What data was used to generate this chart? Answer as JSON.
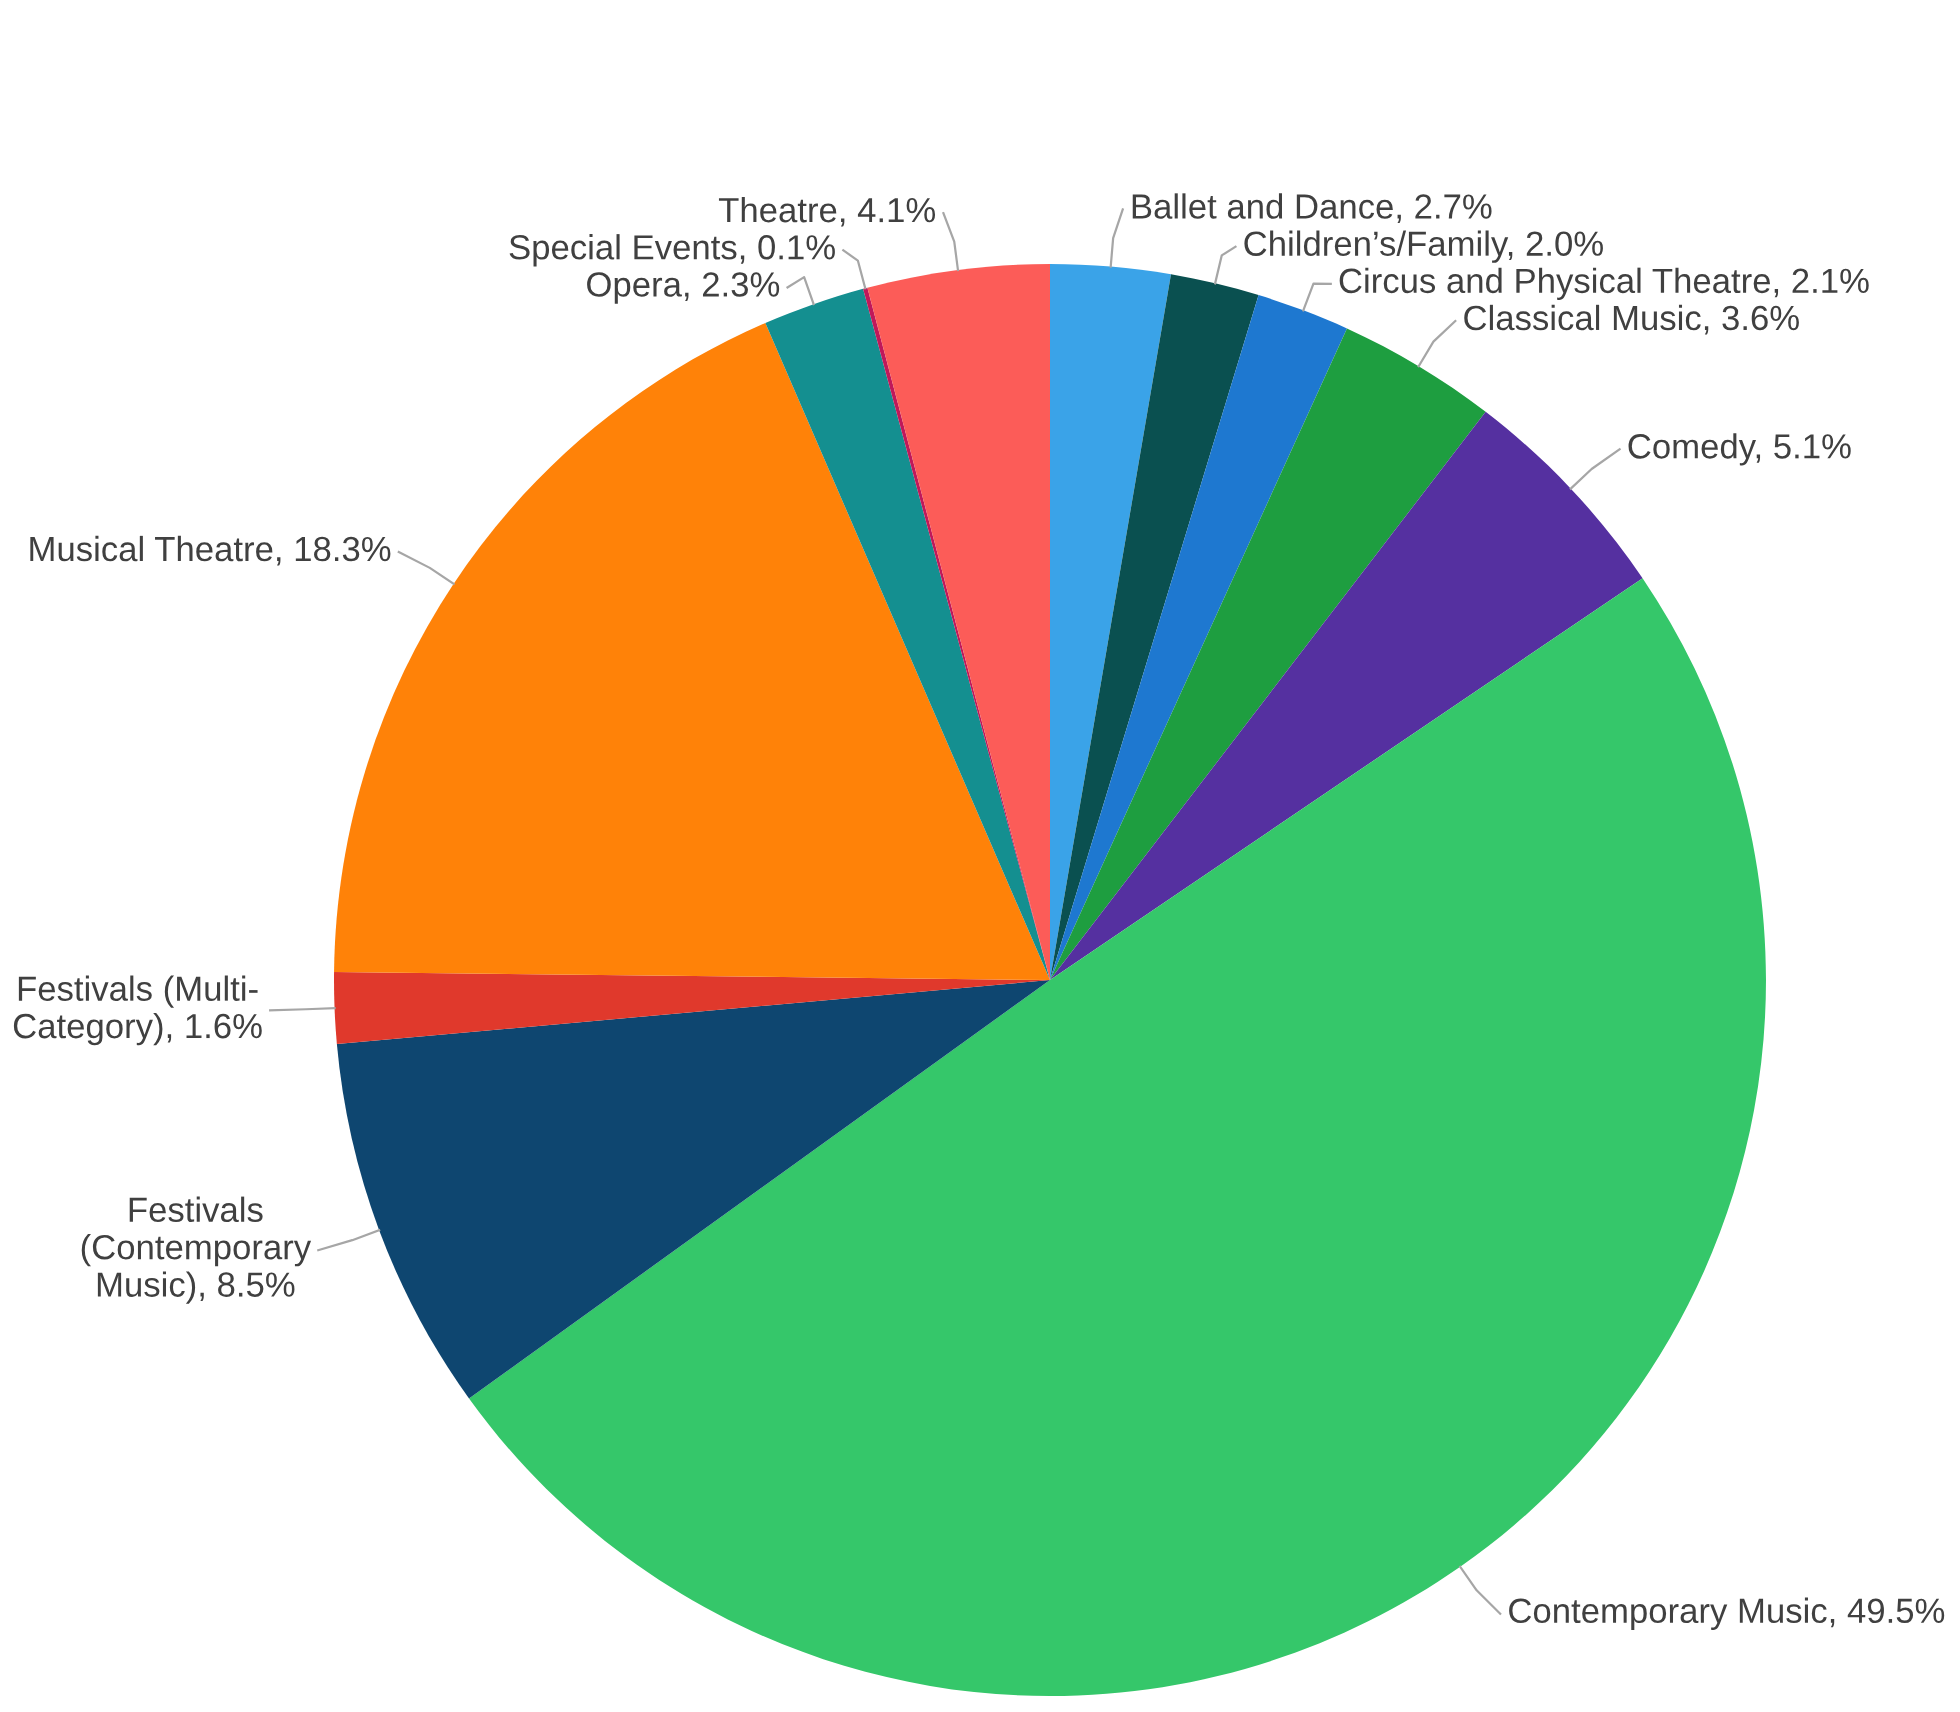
{
  "chart_data": {
    "type": "pie",
    "categories": [
      "Ballet and Dance",
      "Children’s/Family",
      "Circus and Physical Theatre",
      "Classical Music",
      "Comedy",
      "Contemporary Music",
      "Festivals (Contemporary Music)",
      "Festivals (Multi-Category)",
      "Musical Theatre",
      "Opera",
      "Special Events",
      "Theatre"
    ],
    "values": [
      2.7,
      2.0,
      2.1,
      3.6,
      5.1,
      49.5,
      8.5,
      1.6,
      18.3,
      2.3,
      0.1,
      4.1
    ],
    "colors": [
      "#3aa3e8",
      "#0a5050",
      "#1e78d0",
      "#1e9e40",
      "#5530a0",
      "#35c76a",
      "#0e4670",
      "#e0392c",
      "#ff8208",
      "#148f90",
      "#c0185a",
      "#fc5c58"
    ],
    "value_labels": [
      "2.7%",
      "2.0%",
      "2.1%",
      "3.6%",
      "5.1%",
      "49.5%",
      "8.5%",
      "1.6%",
      "18.3%",
      "2.3%",
      "0.1%",
      "4.1%"
    ],
    "data_labels": true,
    "legend": false
  }
}
